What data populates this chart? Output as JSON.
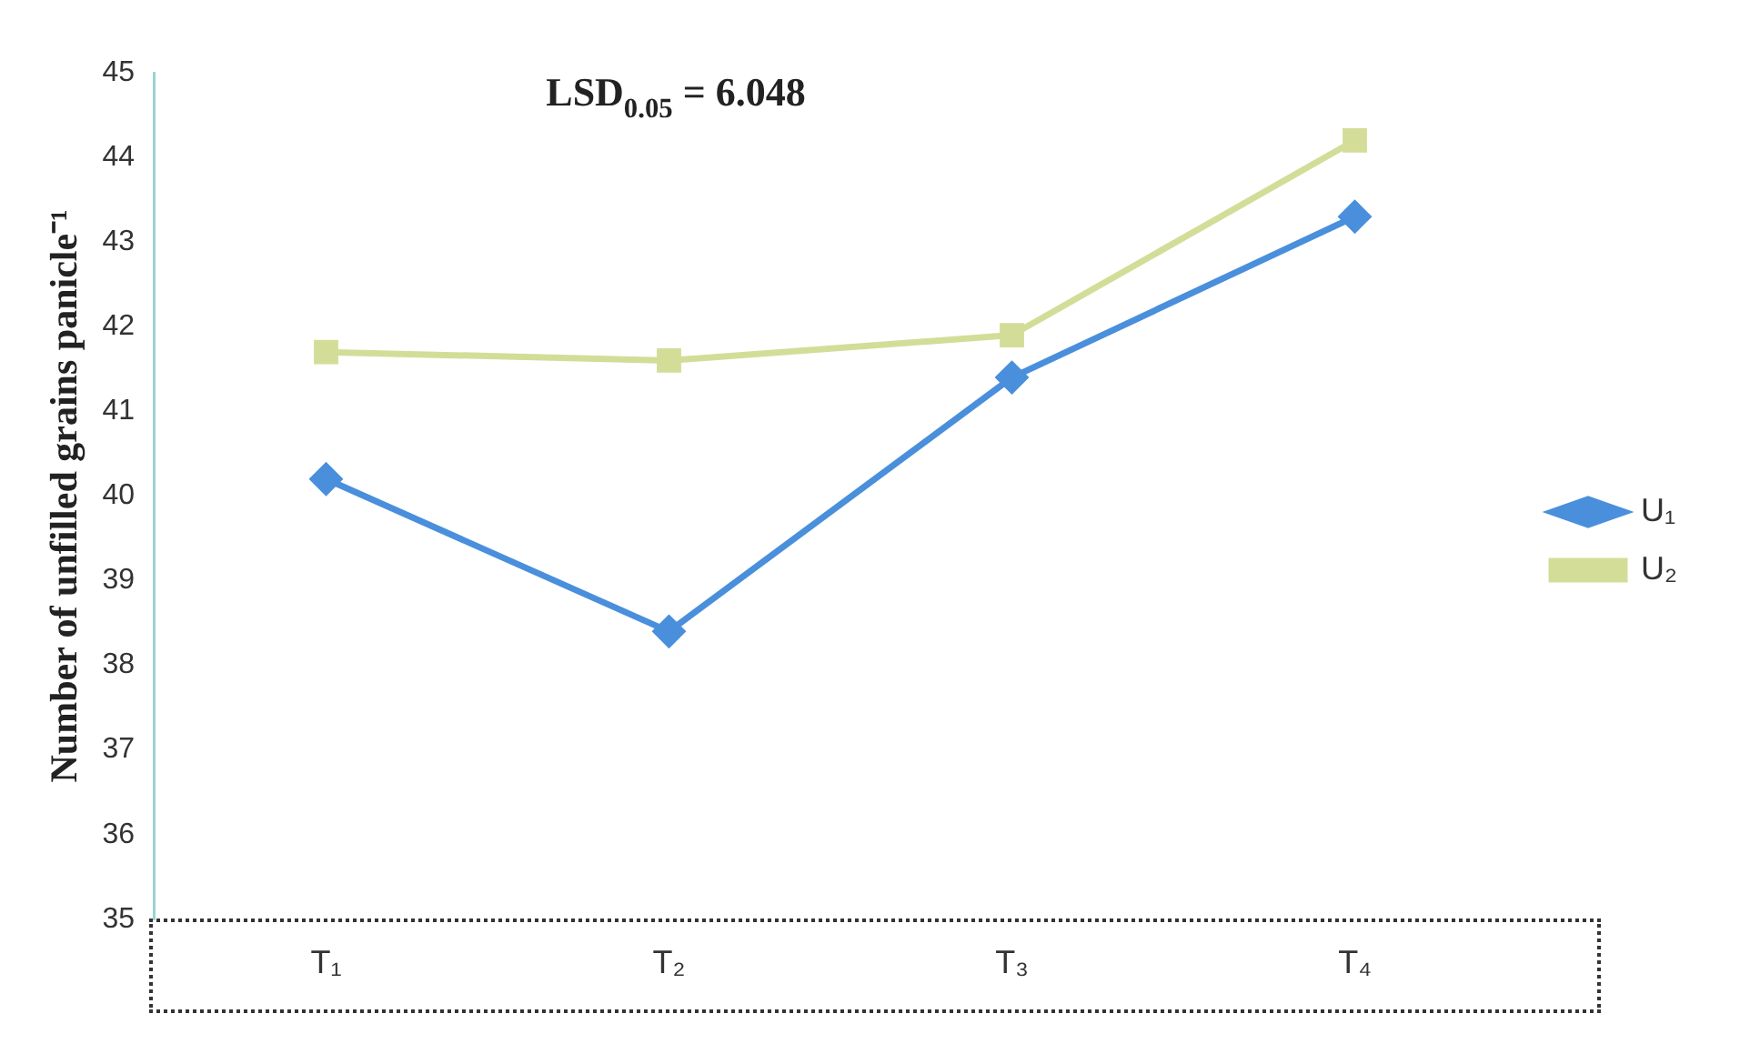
{
  "chart_data": {
    "type": "line",
    "ylabel": "Number of unfilled grains panicle⁻¹",
    "annotations": [
      "LSD$_{0.05}$ = 6.048"
    ],
    "categories": [
      "T₁",
      "T₂",
      "T₃",
      "T₄"
    ],
    "series": [
      {
        "name": "U₁",
        "color": "#4a8fdc",
        "values": [
          40.2,
          38.4,
          41.4,
          43.3
        ],
        "marker": "diamond"
      },
      {
        "name": "U₂",
        "color": "#d3dd98",
        "values": [
          41.7,
          41.6,
          41.9,
          44.2
        ],
        "marker": "square"
      }
    ],
    "ylim": [
      35,
      45
    ],
    "yticks": [
      35,
      36,
      37,
      38,
      39,
      40,
      41,
      42,
      43,
      44,
      45
    ],
    "grid": false,
    "legend": "right",
    "line_style": "solid"
  }
}
